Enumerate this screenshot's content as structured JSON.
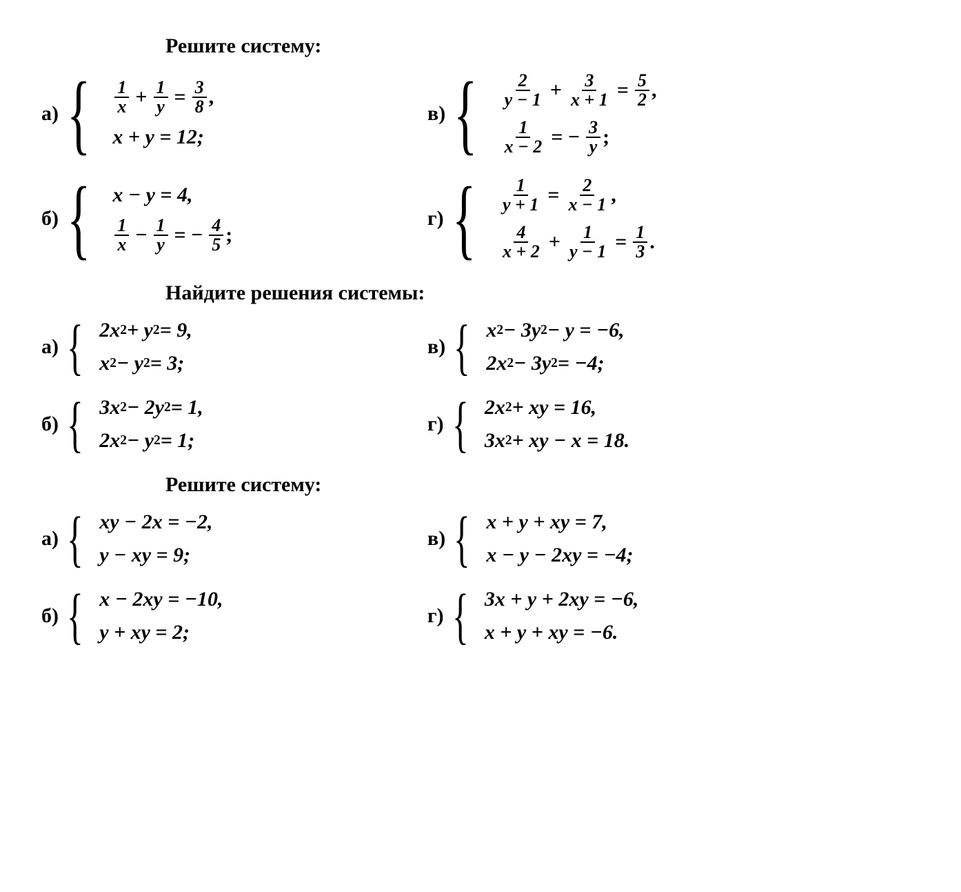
{
  "background_color": "#ffffff",
  "text_color": "#000000",
  "font_family": "Times New Roman, serif",
  "heading_fontsize": 30,
  "equation_fontsize": 30,
  "sections": [
    {
      "heading": "Решите систему:",
      "problems": {
        "a": {
          "label": "а)",
          "lines": [
            {
              "type": "frac-eq",
              "parts": [
                {
                  "frac": [
                    "1",
                    "x"
                  ]
                },
                {
                  "op": "+"
                },
                {
                  "frac": [
                    "1",
                    "y"
                  ]
                },
                {
                  "op": "="
                },
                {
                  "frac": [
                    "3",
                    "8"
                  ]
                },
                {
                  "punct": ","
                }
              ]
            },
            {
              "type": "plain",
              "text": "x + y = 12;"
            }
          ]
        },
        "b": {
          "label": "б)",
          "lines": [
            {
              "type": "plain",
              "text": "x − y = 4,"
            },
            {
              "type": "frac-eq",
              "parts": [
                {
                  "frac": [
                    "1",
                    "x"
                  ]
                },
                {
                  "op": "−"
                },
                {
                  "frac": [
                    "1",
                    "y"
                  ]
                },
                {
                  "op": "= −"
                },
                {
                  "frac": [
                    "4",
                    "5"
                  ]
                },
                {
                  "punct": ";"
                }
              ]
            }
          ]
        },
        "v": {
          "label": "в)",
          "lines": [
            {
              "type": "frac-eq",
              "parts": [
                {
                  "frac": [
                    "2",
                    "y − 1"
                  ]
                },
                {
                  "op": "+"
                },
                {
                  "frac": [
                    "3",
                    "x + 1"
                  ]
                },
                {
                  "op": "="
                },
                {
                  "frac": [
                    "5",
                    "2"
                  ]
                },
                {
                  "punct": ","
                }
              ]
            },
            {
              "type": "frac-eq",
              "parts": [
                {
                  "frac": [
                    "1",
                    "x − 2"
                  ]
                },
                {
                  "op": "= −"
                },
                {
                  "frac": [
                    "3",
                    "y"
                  ]
                },
                {
                  "punct": ";"
                }
              ]
            }
          ]
        },
        "g": {
          "label": "г)",
          "lines": [
            {
              "type": "frac-eq",
              "parts": [
                {
                  "frac": [
                    "1",
                    "y + 1"
                  ]
                },
                {
                  "op": "="
                },
                {
                  "frac": [
                    "2",
                    "x − 1"
                  ]
                },
                {
                  "punct": ","
                }
              ]
            },
            {
              "type": "frac-eq",
              "parts": [
                {
                  "frac": [
                    "4",
                    "x + 2"
                  ]
                },
                {
                  "op": "+"
                },
                {
                  "frac": [
                    "1",
                    "y − 1"
                  ]
                },
                {
                  "op": "="
                },
                {
                  "frac": [
                    "1",
                    "3"
                  ]
                },
                {
                  "punct": "."
                }
              ]
            }
          ]
        }
      }
    },
    {
      "heading": "Найдите решения системы:",
      "problems": {
        "a": {
          "label": "а)",
          "lines": [
            {
              "type": "poly",
              "html": "2x<sup>2</sup> + y<sup>2</sup> = 9,"
            },
            {
              "type": "poly",
              "html": "x<sup>2</sup> − y<sup>2</sup> = 3;"
            }
          ]
        },
        "b": {
          "label": "б)",
          "lines": [
            {
              "type": "poly",
              "html": "3x<sup>2</sup> − 2y<sup>2</sup> = 1,"
            },
            {
              "type": "poly",
              "html": "2x<sup>2</sup> − y<sup>2</sup> = 1;"
            }
          ]
        },
        "v": {
          "label": "в)",
          "lines": [
            {
              "type": "poly",
              "html": "x<sup>2</sup> − 3y<sup>2</sup> − y = −6,"
            },
            {
              "type": "poly",
              "html": "2x<sup>2</sup> − 3y<sup>2</sup> = −4;"
            }
          ]
        },
        "g": {
          "label": "г)",
          "lines": [
            {
              "type": "poly",
              "html": "2x<sup>2</sup> + xy = 16,"
            },
            {
              "type": "poly",
              "html": "3x<sup>2</sup> + xy − x = 18."
            }
          ]
        }
      }
    },
    {
      "heading": "Решите систему:",
      "problems": {
        "a": {
          "label": "а)",
          "lines": [
            {
              "type": "plain",
              "text": "xy − 2x = −2,"
            },
            {
              "type": "plain",
              "text": "y − xy = 9;"
            }
          ]
        },
        "b": {
          "label": "б)",
          "lines": [
            {
              "type": "plain",
              "text": "x − 2xy = −10,"
            },
            {
              "type": "plain",
              "text": "y + xy = 2;"
            }
          ]
        },
        "v": {
          "label": "в)",
          "lines": [
            {
              "type": "plain",
              "text": "x + y + xy = 7,"
            },
            {
              "type": "plain",
              "text": "x − y − 2xy = −4;"
            }
          ]
        },
        "g": {
          "label": "г)",
          "lines": [
            {
              "type": "plain",
              "text": "3x + y + 2xy = −6,"
            },
            {
              "type": "plain",
              "text": "x + y + xy = −6."
            }
          ]
        }
      }
    }
  ]
}
